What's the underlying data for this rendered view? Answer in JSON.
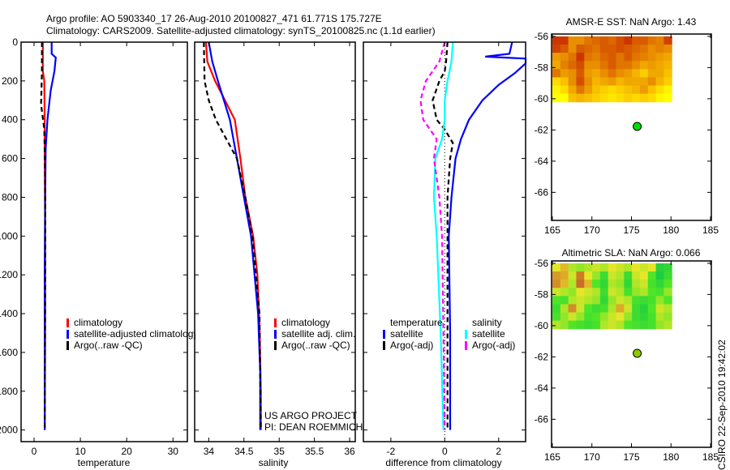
{
  "title_line1": "Argo profile: AO 5903340_17 26-Aug-2010 20100827_471 61.771S 175.727E",
  "title_line2": "Climatology: CARS2009. Satellite-adjusted climatology: synTS_20100825.nc (1.1d earlier)",
  "stamp": "CSIRO 22-Sep-2010 19:42:02",
  "project_note": [
    "US ARGO PROJECT",
    "PI: DEAN ROEMMICH"
  ],
  "colors": {
    "climatology": "#ff0000",
    "satellite": "#0000ff",
    "argo": "#000000",
    "sal_satellite": "#00ffff",
    "sal_argo": "#ff00ff"
  },
  "chart_data": [
    {
      "type": "line",
      "name": "temperature",
      "xlabel": "temperature",
      "ylabel": "",
      "xlim": [
        -2.8,
        33.1
      ],
      "ylim": [
        0,
        2060
      ],
      "y_reversed": true,
      "xticks": [
        0,
        10,
        20,
        30
      ],
      "yticks": [
        0,
        200,
        400,
        600,
        800,
        1000,
        1200,
        1400,
        1600,
        1800,
        2000
      ],
      "legend": [
        "climatology",
        "satellite-adjusted climatology",
        "Argo(..raw -QC)"
      ],
      "series": [
        {
          "name": "climatology",
          "color": "#ff0000",
          "dash": false,
          "x": [
            1.9,
            1.9,
            2.2,
            2.3,
            2.3,
            2.4,
            2.4,
            2.3
          ],
          "y": [
            0,
            150,
            200,
            400,
            600,
            1000,
            1500,
            2000
          ]
        },
        {
          "name": "satellite-adjusted climatology",
          "color": "#0000ff",
          "dash": false,
          "x": [
            3.8,
            3.8,
            4.7,
            4.4,
            3.6,
            2.9,
            2.5,
            2.4,
            2.3,
            2.3
          ],
          "y": [
            0,
            60,
            80,
            150,
            250,
            400,
            550,
            800,
            1200,
            2000
          ]
        },
        {
          "name": "Argo(..raw -QC)",
          "color": "#000000",
          "dash": true,
          "x": [
            1.7,
            1.7,
            1.6,
            1.5,
            2.2,
            2.4,
            2.4,
            2.3
          ],
          "y": [
            0,
            150,
            250,
            320,
            450,
            700,
            1200,
            2000
          ]
        }
      ]
    },
    {
      "type": "line",
      "name": "salinity",
      "xlabel": "salinity",
      "ylabel": "",
      "xlim": [
        33.8,
        36.08
      ],
      "ylim": [
        0,
        2060
      ],
      "y_reversed": true,
      "xticks": [
        34,
        34.5,
        35,
        35.5,
        36
      ],
      "yticks": [
        0,
        200,
        400,
        600,
        800,
        1000,
        1200,
        1400,
        1600,
        1800,
        2000
      ],
      "legend": [
        "climatology",
        "satellite adj. clim.",
        "Argo(..raw -QC)"
      ],
      "series": [
        {
          "name": "climatology",
          "color": "#ff0000",
          "dash": false,
          "x": [
            33.96,
            33.98,
            34.09,
            34.37,
            34.45,
            34.52,
            34.63,
            34.69,
            34.72,
            34.74,
            34.74
          ],
          "y": [
            0,
            100,
            200,
            400,
            600,
            800,
            1000,
            1200,
            1450,
            1800,
            2000
          ]
        },
        {
          "name": "satellite adj. clim.",
          "color": "#0000ff",
          "dash": false,
          "x": [
            34.0,
            34.05,
            34.13,
            34.3,
            34.4,
            34.5,
            34.6,
            34.7,
            34.73,
            34.73
          ],
          "y": [
            0,
            100,
            200,
            400,
            600,
            800,
            1000,
            1400,
            1700,
            2000
          ]
        },
        {
          "name": "Argo(..raw -QC)",
          "color": "#000000",
          "dash": true,
          "x": [
            33.93,
            33.94,
            34.0,
            34.1,
            34.25,
            34.4,
            34.52,
            34.62,
            34.72,
            34.74
          ],
          "y": [
            0,
            200,
            300,
            400,
            500,
            600,
            800,
            1000,
            1400,
            2000
          ]
        }
      ]
    },
    {
      "type": "line",
      "name": "difference",
      "xlabel": "difference from climatology",
      "ylabel": "",
      "xlim": [
        -3.02,
        3.0
      ],
      "ylim": [
        0,
        2060
      ],
      "y_reversed": true,
      "xticks": [
        -2,
        0,
        2
      ],
      "yticks": [
        0,
        200,
        400,
        600,
        800,
        1000,
        1200,
        1400,
        1600,
        1800,
        2000
      ],
      "legend_groups": [
        {
          "heading": "temperature",
          "items": [
            "satellite",
            "Argo(-adj)"
          ]
        },
        {
          "heading": "salinity",
          "items": [
            "satellite",
            "Argo(-adj)"
          ]
        }
      ],
      "series": [
        {
          "name": "temperature satellite",
          "color": "#0000ff",
          "dash": false,
          "x": [
            2.5,
            2.4,
            1.5,
            3.0,
            3.0,
            2.6,
            2.0,
            1.4,
            0.9,
            0.6,
            0.4,
            0.25,
            0.15,
            0.2,
            0.2
          ],
          "y": [
            0,
            60,
            75,
            85,
            110,
            160,
            220,
            300,
            400,
            500,
            600,
            800,
            1000,
            1500,
            2000
          ]
        },
        {
          "name": "temperature Argo(-adj)",
          "color": "#000000",
          "dash": true,
          "x": [
            0.1,
            0.05,
            0.0,
            -0.2,
            -0.45,
            -0.3,
            0.0,
            0.3,
            0.2,
            0.1,
            0.1,
            0.1
          ],
          "y": [
            0,
            100,
            150,
            200,
            300,
            400,
            450,
            520,
            600,
            800,
            1200,
            2000
          ]
        },
        {
          "name": "salinity satellite",
          "color": "#00ffff",
          "dash": false,
          "x": [
            0.3,
            0.25,
            0.1,
            0.0,
            0.0,
            -0.1,
            -0.35,
            -0.4,
            -0.3,
            -0.15,
            -0.05
          ],
          "y": [
            0,
            100,
            200,
            300,
            400,
            500,
            600,
            800,
            1000,
            1500,
            2000
          ]
        },
        {
          "name": "salinity Argo(-adj)",
          "color": "#ff00ff",
          "dash": true,
          "x": [
            0.0,
            -0.2,
            -0.7,
            -0.9,
            -0.8,
            -0.3,
            -0.4,
            -0.2,
            -0.1,
            -0.05,
            0.0
          ],
          "y": [
            0,
            100,
            200,
            300,
            400,
            500,
            600,
            800,
            1000,
            1500,
            2000
          ]
        }
      ],
      "zero_line": 0
    },
    {
      "type": "heatmap",
      "name": "sst-map",
      "title": "AMSR-E SST: NaN Argo: 1.43",
      "xlim": [
        164.9,
        185.1
      ],
      "ylim": [
        -67.8,
        -55.85
      ],
      "xticks": [
        165,
        170,
        175,
        180,
        185
      ],
      "yticks": [
        -56,
        -58,
        -60,
        -62,
        -64,
        -66
      ],
      "grid_extent": {
        "lon": [
          165,
          180.1
        ],
        "lat": [
          -56,
          -60.2
        ]
      },
      "colormap": "sst",
      "grid": [
        [
          0.95,
          0.95,
          0.6,
          0.6,
          0.7,
          0.75,
          0.8,
          0.75,
          0.85,
          0.95,
          0.8,
          0.8,
          0.7,
          0.65,
          0.9
        ],
        [
          0.9,
          0.8,
          0.6,
          0.8,
          0.75,
          0.7,
          0.8,
          0.8,
          0.85,
          0.8,
          0.75,
          0.7,
          0.6,
          0.65,
          0.6
        ],
        [
          0.55,
          0.6,
          0.7,
          0.95,
          0.7,
          0.65,
          0.75,
          0.8,
          0.7,
          0.8,
          0.7,
          0.65,
          0.6,
          0.55,
          0.5
        ],
        [
          0.5,
          0.65,
          0.75,
          0.85,
          0.6,
          0.6,
          0.7,
          0.8,
          0.7,
          0.7,
          0.6,
          0.5,
          0.55,
          0.5,
          0.45
        ],
        [
          0.7,
          0.55,
          0.6,
          0.8,
          0.55,
          0.5,
          0.6,
          0.7,
          0.6,
          0.55,
          0.45,
          0.35,
          0.5,
          0.5,
          0.4
        ],
        [
          0.3,
          0.4,
          0.6,
          0.85,
          0.6,
          0.45,
          0.5,
          0.55,
          0.45,
          0.5,
          0.5,
          0.5,
          0.6,
          0.45,
          0.35
        ],
        [
          0.2,
          0.3,
          0.5,
          0.7,
          0.55,
          0.4,
          0.35,
          0.3,
          0.35,
          0.4,
          0.45,
          0.55,
          0.4,
          0.3,
          0.2
        ],
        [
          0.1,
          0.15,
          0.4,
          0.45,
          0.4,
          0.35,
          0.3,
          0.25,
          0.3,
          0.35,
          0.3,
          0.35,
          0.3,
          0.2,
          0.1
        ]
      ],
      "argo_point": {
        "lon": 175.727,
        "lat": -61.771,
        "color": "#00dd00"
      }
    },
    {
      "type": "heatmap",
      "name": "sla-map",
      "title": "Altimetric SLA: NaN Argo: 0.066",
      "xlim": [
        164.9,
        185.1
      ],
      "ylim": [
        -67.8,
        -55.85
      ],
      "xticks": [
        165,
        170,
        175,
        180,
        185
      ],
      "yticks": [
        -56,
        -58,
        -60,
        -62,
        -64,
        -66
      ],
      "grid_extent": {
        "lon": [
          165,
          180.1
        ],
        "lat": [
          -56,
          -60.2
        ]
      },
      "colormap": "sla",
      "grid": [
        [
          0.6,
          0.65,
          0.5,
          0.45,
          0.5,
          0.55,
          0.5,
          0.6,
          0.55,
          0.5,
          0.6,
          0.55,
          0.6,
          0.2,
          0.25
        ],
        [
          0.75,
          0.7,
          0.55,
          0.85,
          0.6,
          0.45,
          0.3,
          0.55,
          0.5,
          0.3,
          0.55,
          0.6,
          0.4,
          0.15,
          0.3
        ],
        [
          0.8,
          0.65,
          0.5,
          0.9,
          0.65,
          0.4,
          0.25,
          0.5,
          0.45,
          0.25,
          0.5,
          0.55,
          0.35,
          0.25,
          0.4
        ],
        [
          0.55,
          0.5,
          0.45,
          0.6,
          0.55,
          0.5,
          0.3,
          0.55,
          0.5,
          0.35,
          0.45,
          0.5,
          0.4,
          0.35,
          0.45
        ],
        [
          0.4,
          0.35,
          0.5,
          0.55,
          0.5,
          0.45,
          0.25,
          0.45,
          0.55,
          0.5,
          0.35,
          0.3,
          0.35,
          0.45,
          0.4
        ],
        [
          0.3,
          0.5,
          0.8,
          0.55,
          0.4,
          0.3,
          0.35,
          0.5,
          0.7,
          0.55,
          0.3,
          0.2,
          0.4,
          0.55,
          0.5
        ],
        [
          0.35,
          0.45,
          0.55,
          0.45,
          0.35,
          0.4,
          0.45,
          0.55,
          0.6,
          0.45,
          0.3,
          0.25,
          0.35,
          0.5,
          0.45
        ],
        [
          0.5,
          0.45,
          0.4,
          0.35,
          0.3,
          0.35,
          0.5,
          0.55,
          0.5,
          0.4,
          0.35,
          0.3,
          0.35,
          0.45,
          0.5
        ]
      ],
      "argo_point": {
        "lon": 175.727,
        "lat": -61.771,
        "color": "#88cc00"
      }
    }
  ]
}
